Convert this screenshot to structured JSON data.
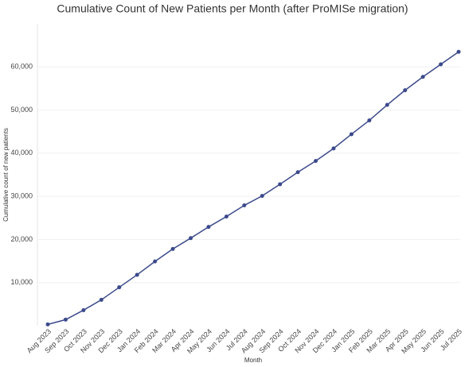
{
  "chart_data": {
    "type": "line",
    "title": "Cumulative Count of New Patients per Month (after ProMISe migration)",
    "x_label": "Month",
    "y_label": "Cumulative count of new patients",
    "categories": [
      "Aug 2023",
      "Sep 2023",
      "Oct 2023",
      "Nov 2023",
      "Dec 2023",
      "Jan 2024",
      "Feb 2024",
      "Mar 2024",
      "Apr 2024",
      "May 2024",
      "Jun 2024",
      "Jul 2024",
      "Aug 2024",
      "Sep 2024",
      "Oct 2024",
      "Nov 2024",
      "Dec 2024",
      "Jan 2025",
      "Feb 2025",
      "Mar 2025",
      "Apr 2025",
      "May 2025",
      "Jun 2025",
      "Jul 2025"
    ],
    "series": [
      {
        "name": "Cumulative count of new patients",
        "color": "#3b4a8c",
        "values": [
          300,
          1400,
          3600,
          6000,
          8900,
          11800,
          14900,
          17800,
          20300,
          22900,
          25300,
          27900,
          30100,
          32800,
          35600,
          38200,
          41100,
          44400,
          47600,
          51200,
          54600,
          57700,
          60600,
          63500
        ]
      }
    ],
    "ylim": [
      0,
      70000
    ],
    "yticks": [
      {
        "value": 10000,
        "label": "10,000"
      },
      {
        "value": 20000,
        "label": "20,000"
      },
      {
        "value": 30000,
        "label": "30,000"
      },
      {
        "value": 40000,
        "label": "40,000"
      },
      {
        "value": 50000,
        "label": "50,000"
      },
      {
        "value": 60000,
        "label": "60,000"
      }
    ],
    "grid": true
  }
}
